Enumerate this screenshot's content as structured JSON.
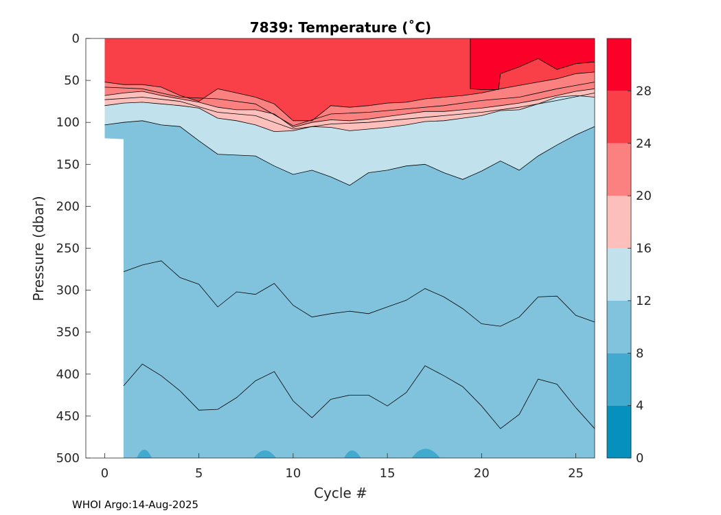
{
  "chart_data": {
    "type": "contourf",
    "title": "7839:  Temperature (˚C)",
    "xlabel": "Cycle #",
    "ylabel": "Pressure (dbar)",
    "xlim": [
      -1,
      26
    ],
    "ylim": [
      0,
      500
    ],
    "y_reversed": true,
    "x_ticks": [
      0,
      5,
      10,
      15,
      20,
      25
    ],
    "y_ticks": [
      0,
      50,
      100,
      150,
      200,
      250,
      300,
      350,
      400,
      450,
      500
    ],
    "colorbar": {
      "ticks": [
        0,
        4,
        8,
        12,
        16,
        20,
        24,
        28
      ],
      "range": [
        0,
        32
      ],
      "levels": [
        {
          "from": 0,
          "to": 4,
          "color": "#0690bd"
        },
        {
          "from": 4,
          "to": 8,
          "color": "#42a9cf"
        },
        {
          "from": 8,
          "to": 12,
          "color": "#81c3dd"
        },
        {
          "from": 12,
          "to": 16,
          "color": "#c1e2ec"
        },
        {
          "from": 16,
          "to": 20,
          "color": "#fdbfbb"
        },
        {
          "from": 20,
          "to": 24,
          "color": "#fb8080"
        },
        {
          "from": 24,
          "to": 28,
          "color": "#f94049"
        },
        {
          "from": 28,
          "to": 32,
          "color": "#fb0028"
        }
      ]
    },
    "isotherms": [
      {
        "level": 8,
        "points": [
          [
            1,
            414
          ],
          [
            2,
            388
          ],
          [
            3,
            402
          ],
          [
            4,
            420
          ],
          [
            5,
            443
          ],
          [
            6,
            442
          ],
          [
            7,
            428
          ],
          [
            8,
            408
          ],
          [
            9,
            397
          ],
          [
            10,
            432
          ],
          [
            11,
            452
          ],
          [
            12,
            430
          ],
          [
            13,
            425
          ],
          [
            14,
            425
          ],
          [
            15,
            438
          ],
          [
            16,
            422
          ],
          [
            17,
            390
          ],
          [
            18,
            402
          ],
          [
            19,
            415
          ],
          [
            20,
            438
          ],
          [
            21,
            465
          ],
          [
            22,
            448
          ],
          [
            23,
            406
          ],
          [
            24,
            412
          ],
          [
            25,
            440
          ],
          [
            26,
            465
          ]
        ]
      },
      {
        "level": 10,
        "points": [
          [
            1,
            278
          ],
          [
            2,
            270
          ],
          [
            3,
            265
          ],
          [
            4,
            285
          ],
          [
            5,
            293
          ],
          [
            6,
            320
          ],
          [
            7,
            302
          ],
          [
            8,
            305
          ],
          [
            9,
            292
          ],
          [
            10,
            318
          ],
          [
            11,
            332
          ],
          [
            12,
            328
          ],
          [
            13,
            325
          ],
          [
            14,
            328
          ],
          [
            15,
            320
          ],
          [
            16,
            312
          ],
          [
            17,
            298
          ],
          [
            18,
            308
          ],
          [
            19,
            322
          ],
          [
            20,
            340
          ],
          [
            21,
            343
          ],
          [
            22,
            332
          ],
          [
            23,
            308
          ],
          [
            24,
            307
          ],
          [
            25,
            330
          ],
          [
            26,
            338
          ]
        ]
      },
      {
        "level": 12,
        "points": [
          [
            0,
            103
          ],
          [
            1,
            100
          ],
          [
            2,
            98
          ],
          [
            3,
            103
          ],
          [
            4,
            105
          ],
          [
            5,
            122
          ],
          [
            6,
            138
          ],
          [
            7,
            139
          ],
          [
            8,
            140
          ],
          [
            9,
            152
          ],
          [
            10,
            162
          ],
          [
            11,
            157
          ],
          [
            12,
            165
          ],
          [
            13,
            175
          ],
          [
            14,
            160
          ],
          [
            15,
            157
          ],
          [
            16,
            152
          ],
          [
            17,
            150
          ],
          [
            18,
            160
          ],
          [
            19,
            168
          ],
          [
            20,
            158
          ],
          [
            21,
            146
          ],
          [
            22,
            157
          ],
          [
            23,
            140
          ],
          [
            24,
            127
          ],
          [
            25,
            115
          ],
          [
            26,
            105
          ]
        ]
      },
      {
        "level": 16,
        "points": [
          [
            0,
            80
          ],
          [
            1,
            77
          ],
          [
            2,
            76
          ],
          [
            3,
            78
          ],
          [
            4,
            80
          ],
          [
            5,
            83
          ],
          [
            6,
            95
          ],
          [
            7,
            98
          ],
          [
            8,
            103
          ],
          [
            9,
            111
          ],
          [
            10,
            110
          ],
          [
            11,
            105
          ],
          [
            12,
            106
          ],
          [
            13,
            110
          ],
          [
            14,
            108
          ],
          [
            15,
            106
          ],
          [
            16,
            103
          ],
          [
            17,
            99
          ],
          [
            18,
            98
          ],
          [
            19,
            95
          ],
          [
            20,
            92
          ],
          [
            21,
            86
          ],
          [
            22,
            85
          ],
          [
            23,
            78
          ],
          [
            24,
            70
          ],
          [
            25,
            68
          ],
          [
            26,
            70
          ]
        ]
      },
      {
        "level": 20,
        "points": [
          [
            0,
            68
          ],
          [
            1,
            65
          ],
          [
            2,
            63
          ],
          [
            3,
            68
          ],
          [
            4,
            72
          ],
          [
            5,
            76
          ],
          [
            6,
            82
          ],
          [
            7,
            85
          ],
          [
            8,
            85
          ],
          [
            9,
            90
          ],
          [
            10,
            106
          ],
          [
            11,
            100
          ],
          [
            12,
            97
          ],
          [
            13,
            98
          ],
          [
            14,
            96
          ],
          [
            15,
            93
          ],
          [
            16,
            90
          ],
          [
            17,
            87
          ],
          [
            18,
            87
          ],
          [
            19,
            85
          ],
          [
            20,
            83
          ],
          [
            21,
            80
          ],
          [
            22,
            77
          ],
          [
            23,
            73
          ],
          [
            24,
            68
          ],
          [
            25,
            63
          ],
          [
            26,
            60
          ]
        ]
      },
      {
        "level": 24,
        "points": [
          [
            0,
            52
          ],
          [
            1,
            55
          ],
          [
            2,
            55
          ],
          [
            3,
            58
          ],
          [
            4,
            68
          ],
          [
            5,
            75
          ],
          [
            6,
            60
          ],
          [
            7,
            65
          ],
          [
            8,
            70
          ],
          [
            9,
            78
          ],
          [
            10,
            98
          ],
          [
            11,
            98
          ],
          [
            12,
            80
          ],
          [
            13,
            82
          ],
          [
            14,
            80
          ],
          [
            15,
            77
          ],
          [
            16,
            76
          ],
          [
            17,
            72
          ],
          [
            18,
            70
          ],
          [
            19,
            68
          ],
          [
            20,
            65
          ],
          [
            21,
            60
          ],
          [
            22,
            56
          ],
          [
            23,
            52
          ],
          [
            24,
            48
          ],
          [
            25,
            42
          ],
          [
            26,
            40
          ]
        ]
      },
      {
        "level": 28,
        "points": [
          [
            19.4,
            0
          ],
          [
            19.4,
            60
          ],
          [
            20,
            61
          ],
          [
            20.9,
            61
          ],
          [
            21,
            42
          ],
          [
            22,
            34
          ],
          [
            23,
            24
          ],
          [
            24,
            37
          ],
          [
            25,
            30
          ],
          [
            26,
            28
          ]
        ]
      }
    ],
    "profiles": {
      "first_cycle": 0,
      "last_cycle": 26,
      "cycle0_max_pressure": 119
    }
  },
  "footer": {
    "credit": "WHOI Argo:14-Aug-2025"
  }
}
